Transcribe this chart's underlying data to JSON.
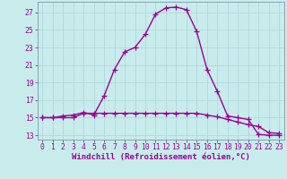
{
  "title": "",
  "xlabel": "Windchill (Refroidissement éolien,°C)",
  "bg_color": "#c8ecec",
  "grid_color": "#b0d8d8",
  "line_color": "#990099",
  "spine_color": "#7799aa",
  "x": [
    0,
    1,
    2,
    3,
    4,
    5,
    6,
    7,
    8,
    9,
    10,
    11,
    12,
    13,
    14,
    15,
    16,
    17,
    18,
    19,
    20,
    21,
    22,
    23
  ],
  "temp": [
    15.0,
    15.0,
    15.2,
    15.3,
    15.6,
    15.3,
    17.5,
    20.5,
    22.5,
    23.0,
    24.5,
    26.8,
    27.5,
    27.6,
    27.3,
    24.8,
    20.5,
    18.0,
    15.2,
    15.0,
    14.8,
    13.1,
    13.0,
    13.0
  ],
  "windchill": [
    15.0,
    15.0,
    15.0,
    15.0,
    15.5,
    15.5,
    15.5,
    15.5,
    15.5,
    15.5,
    15.5,
    15.5,
    15.5,
    15.5,
    15.5,
    15.5,
    15.3,
    15.1,
    14.8,
    14.5,
    14.2,
    14.0,
    13.3,
    13.2
  ],
  "ylim": [
    12.5,
    28.2
  ],
  "xlim": [
    -0.5,
    23.5
  ],
  "yticks": [
    13,
    15,
    17,
    19,
    21,
    23,
    25,
    27
  ],
  "xticks": [
    0,
    1,
    2,
    3,
    4,
    5,
    6,
    7,
    8,
    9,
    10,
    11,
    12,
    13,
    14,
    15,
    16,
    17,
    18,
    19,
    20,
    21,
    22,
    23
  ],
  "xlabel_fontsize": 6.5,
  "tick_fontsize": 5.8,
  "marker": "+",
  "linewidth": 1.0,
  "marker_size": 4,
  "marker_ew": 0.9
}
